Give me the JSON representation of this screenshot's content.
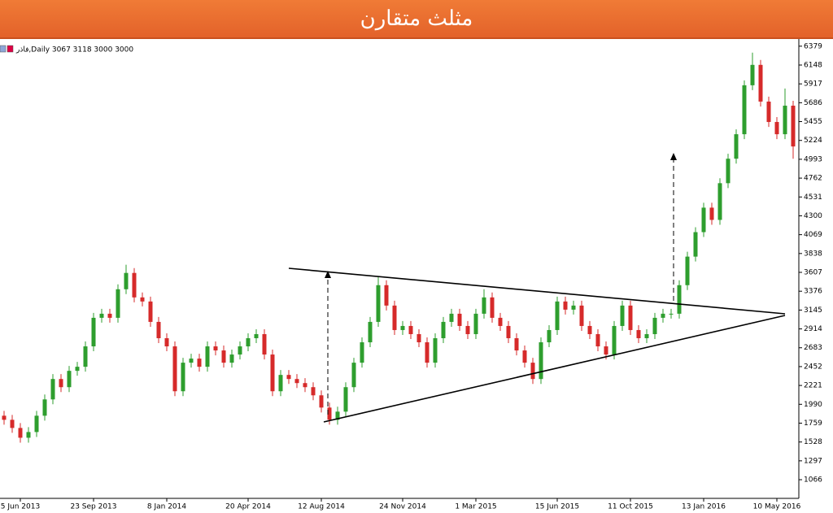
{
  "chart_data": {
    "type": "candlestick",
    "title": "مثلث متقارن",
    "info": "فاذر,Daily  3067 3118 3000 3000",
    "up_color": "#2e9e2e",
    "down_color": "#d62a2a",
    "ylim": [
      867,
      6397
    ],
    "yticks": [
      1066,
      1297,
      1528,
      1759,
      1990,
      2221,
      2452,
      2683,
      2914,
      3145,
      3376,
      3607,
      3838,
      4069,
      4300,
      4531,
      4762,
      4993,
      5224,
      5455,
      5686,
      5917,
      6148,
      6379
    ],
    "xlim": [
      -0.5,
      97.5
    ],
    "xticks": [
      {
        "value": 2,
        "label": "5 Jun 2013"
      },
      {
        "value": 11,
        "label": "23 Sep 2013"
      },
      {
        "value": 20,
        "label": "8 Jan 2014"
      },
      {
        "value": 30,
        "label": "20 Apr 2014"
      },
      {
        "value": 39,
        "label": "12 Aug 2014"
      },
      {
        "value": 49,
        "label": "24 Nov 2014"
      },
      {
        "value": 58,
        "label": "1 Mar 2015"
      },
      {
        "value": 68,
        "label": "15 Jun 2015"
      },
      {
        "value": 77,
        "label": "11 Oct 2015"
      },
      {
        "value": 86,
        "label": "13 Jan 2016"
      },
      {
        "value": 95,
        "label": "10 May 2016"
      }
    ],
    "open": [
      1850,
      1800,
      1700,
      1580,
      1650,
      1850,
      2050,
      2300,
      2200,
      2400,
      2450,
      2700,
      3050,
      3100,
      3050,
      3400,
      3600,
      3300,
      3250,
      3000,
      2800,
      2700,
      2150,
      2500,
      2550,
      2450,
      2700,
      2650,
      2500,
      2600,
      2700,
      2800,
      2850,
      2600,
      2150,
      2350,
      2300,
      2250,
      2200,
      2100,
      1950,
      1800,
      1900,
      2200,
      2500,
      2750,
      3000,
      3450,
      3200,
      2900,
      2950,
      2850,
      2750,
      2500,
      2800,
      3000,
      3100,
      2950,
      2850,
      3100,
      3300,
      3050,
      2950,
      2800,
      2650,
      2500,
      2300,
      2750,
      2900,
      3250,
      3150,
      3200,
      2950,
      2850,
      2700,
      2600,
      2950,
      3200,
      2900,
      2800,
      2850,
      3050,
      3100,
      3100,
      3450,
      3800,
      4100,
      4400,
      4250,
      4700,
      5000,
      5300,
      5900,
      6150,
      5700,
      5450,
      5300,
      5650
    ],
    "high": [
      1910,
      1860,
      1760,
      1710,
      1910,
      2110,
      2360,
      2360,
      2460,
      2510,
      2760,
      3110,
      3160,
      3160,
      3460,
      3700,
      3660,
      3360,
      3310,
      3060,
      2860,
      2760,
      2560,
      2610,
      2610,
      2760,
      2760,
      2710,
      2660,
      2760,
      2860,
      2910,
      2910,
      2660,
      2410,
      2410,
      2360,
      2310,
      2260,
      2160,
      2010,
      1960,
      2260,
      2560,
      2810,
      3060,
      3550,
      3510,
      3260,
      3010,
      3010,
      2910,
      2810,
      2860,
      3060,
      3160,
      3160,
      3010,
      3160,
      3400,
      3360,
      3110,
      3010,
      2860,
      2710,
      2560,
      2810,
      2960,
      3310,
      3310,
      3260,
      3260,
      3010,
      2910,
      2760,
      3010,
      3260,
      3260,
      2960,
      2910,
      3110,
      3160,
      3160,
      3510,
      3860,
      4160,
      4460,
      4460,
      4760,
      5060,
      5360,
      5960,
      6300,
      6210,
      5760,
      5510,
      5860,
      5710
    ],
    "low": [
      1740,
      1640,
      1520,
      1520,
      1590,
      1790,
      1990,
      2140,
      2140,
      2340,
      2390,
      2640,
      2990,
      2990,
      2990,
      3340,
      3240,
      3190,
      2940,
      2740,
      2640,
      2090,
      2090,
      2440,
      2390,
      2390,
      2590,
      2440,
      2440,
      2540,
      2640,
      2740,
      2540,
      2090,
      2090,
      2240,
      2190,
      2140,
      2040,
      1890,
      1740,
      1740,
      1840,
      2140,
      2440,
      2690,
      2940,
      3140,
      2840,
      2840,
      2790,
      2690,
      2440,
      2440,
      2740,
      2940,
      2890,
      2790,
      2790,
      3040,
      2990,
      2890,
      2740,
      2590,
      2440,
      2240,
      2240,
      2690,
      2840,
      3090,
      3090,
      2890,
      2790,
      2640,
      2540,
      2540,
      2890,
      2840,
      2740,
      2740,
      2790,
      2990,
      3040,
      3040,
      3390,
      3740,
      4040,
      4190,
      4190,
      4640,
      4940,
      5240,
      5840,
      5640,
      5390,
      5240,
      5240,
      5000
    ],
    "close": [
      1800,
      1700,
      1580,
      1650,
      1850,
      2050,
      2300,
      2200,
      2400,
      2450,
      2700,
      3050,
      3100,
      3050,
      3400,
      3600,
      3300,
      3250,
      3000,
      2800,
      2700,
      2150,
      2500,
      2550,
      2450,
      2700,
      2650,
      2500,
      2600,
      2700,
      2800,
      2850,
      2600,
      2150,
      2350,
      2300,
      2250,
      2200,
      2100,
      1950,
      1800,
      1900,
      2200,
      2500,
      2750,
      3000,
      3450,
      3200,
      2900,
      2950,
      2850,
      2750,
      2500,
      2800,
      3000,
      3100,
      2950,
      2850,
      3100,
      3300,
      3050,
      2950,
      2800,
      2650,
      2500,
      2300,
      2750,
      2900,
      3250,
      3150,
      3200,
      2950,
      2850,
      2700,
      2600,
      2950,
      3200,
      2900,
      2800,
      2850,
      3050,
      3100,
      3100,
      3450,
      3800,
      4100,
      4400,
      4250,
      4700,
      5000,
      5300,
      5900,
      6150,
      5700,
      5450,
      5300,
      5650,
      5150
    ]
  }
}
